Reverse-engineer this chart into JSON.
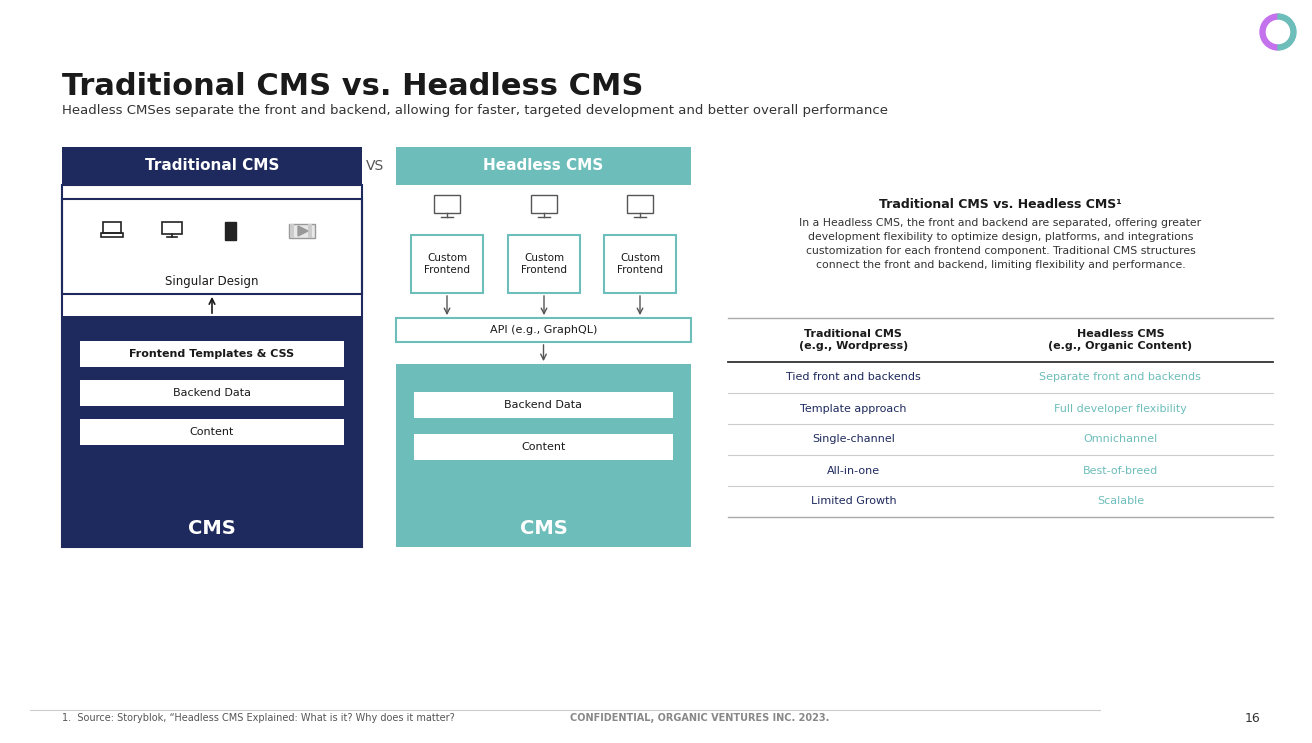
{
  "title": "Traditional CMS vs. Headless CMS",
  "subtitle": "Headless CMSes separate the front and backend, allowing for faster, targeted development and better overall performance",
  "bg_color": "#ffffff",
  "dark_navy": "#1e2a5e",
  "teal": "#6dbdba",
  "white": "#ffffff",
  "black": "#1a1a1a",
  "trad_header": "Traditional CMS",
  "headless_header": "Headless CMS",
  "vs_text": "VS",
  "trad_singular": "Singular Design",
  "trad_layers": [
    "Frontend Templates & CSS",
    "Backend Data",
    "Content"
  ],
  "trad_cms_label": "CMS",
  "headless_api": "API (e.g., GraphQL)",
  "headless_layers": [
    "Backend Data",
    "Content"
  ],
  "headless_cms_label": "CMS",
  "sidebar_title": "Traditional CMS vs. Headless CMS¹",
  "sidebar_desc": "In a Headless CMS, the front and backend are separated, offering greater\ndevelopment flexibility to optimize design, platforms, and integrations\ncustomization for each frontend component. Traditional CMS structures\nconnect the front and backend, limiting flexibility and performance.",
  "table_col1_header": "Traditional CMS\n(e.g., Wordpress)",
  "table_col2_header": "Headless CMS\n(e.g., Organic Content)",
  "table_rows": [
    [
      "Tied front and backends",
      "Separate front and backends"
    ],
    [
      "Template approach",
      "Full developer flexibility"
    ],
    [
      "Single-channel",
      "Omnichannel"
    ],
    [
      "All-in-one",
      "Best-of-breed"
    ],
    [
      "Limited Growth",
      "Scalable"
    ]
  ],
  "footer_left": "1.  Source: Storyblok, “Headless CMS Explained: What is it? Why does it matter?",
  "footer_center": "CONFIDENTIAL, ORGANIC VENTURES INC. 2023.",
  "footer_page": "16",
  "col1_color": "#1e2a5e",
  "col2_color": "#6dbdba"
}
